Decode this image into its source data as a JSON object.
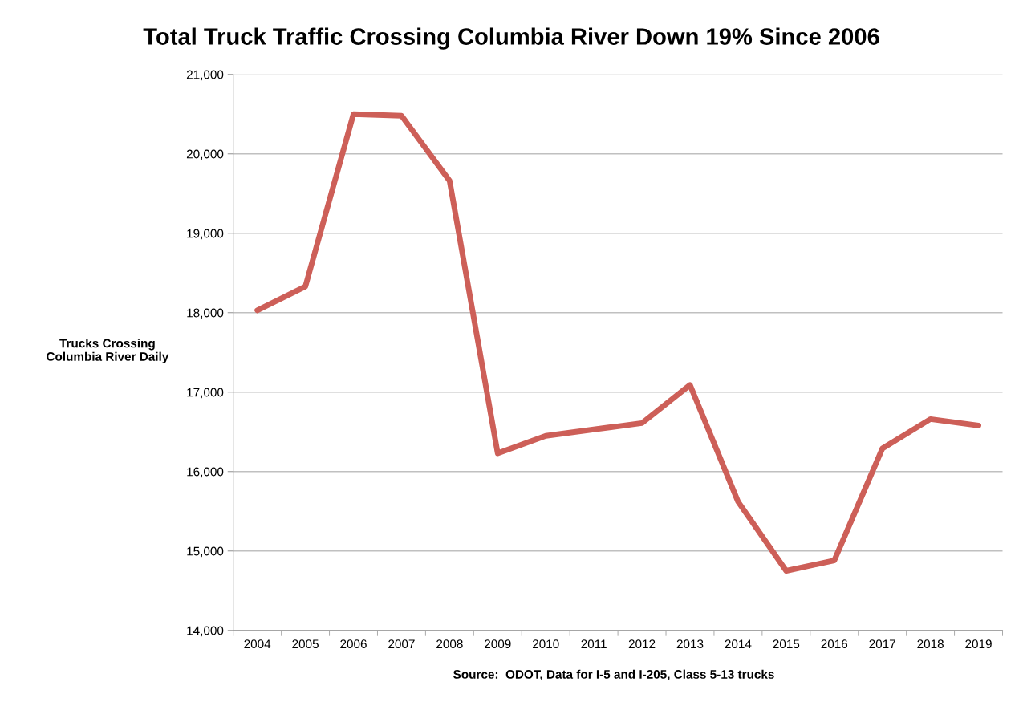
{
  "chart_data": {
    "type": "line",
    "title": "Total Truck Traffic Crossing Columbia River Down 19% Since 2006",
    "ylabel": "Trucks Crossing\nColumbia River Daily",
    "categories": [
      "2004",
      "2005",
      "2006",
      "2007",
      "2008",
      "2009",
      "2010",
      "2011",
      "2012",
      "2013",
      "2014",
      "2015",
      "2016",
      "2017",
      "2018",
      "2019"
    ],
    "series": [
      {
        "color": "#cd5f58",
        "values": [
          18030,
          18330,
          20500,
          20480,
          19660,
          16230,
          16450,
          16530,
          16610,
          17090,
          15620,
          14750,
          14880,
          16290,
          16660,
          16580
        ]
      }
    ],
    "ylim": [
      14000,
      21000
    ],
    "yticks": [
      {
        "value": 14000,
        "label": "14,000"
      },
      {
        "value": 15000,
        "label": "15,000"
      },
      {
        "value": 16000,
        "label": "16,000"
      },
      {
        "value": 17000,
        "label": "17,000"
      },
      {
        "value": 18000,
        "label": "18,000"
      },
      {
        "value": 19000,
        "label": "19,000"
      },
      {
        "value": 20000,
        "label": "20,000"
      },
      {
        "value": 21000,
        "label": "21,000"
      }
    ],
    "grid": "y",
    "legend": false,
    "marker": "none",
    "line_style": "solid",
    "annotations": [
      "Source:  ODOT, Data for I-5 and I-205, Class 5-13 trucks"
    ]
  }
}
